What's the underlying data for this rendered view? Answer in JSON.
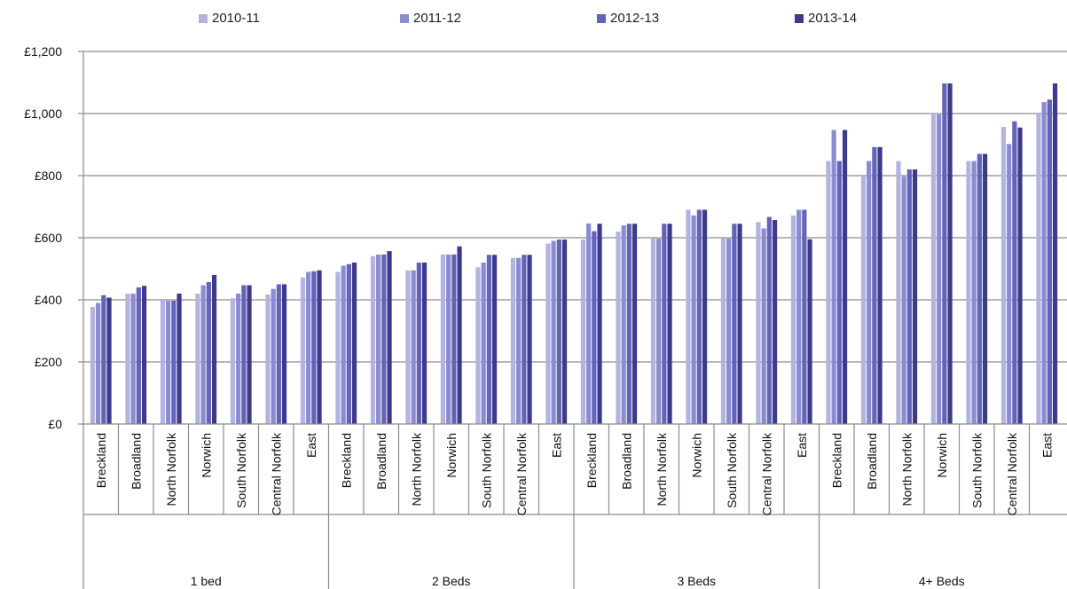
{
  "chart_data": {
    "type": "bar",
    "title": "",
    "xlabel": "",
    "ylabel": "",
    "ylim": [
      0,
      1200
    ],
    "yticks": [
      0,
      200,
      400,
      600,
      800,
      1000,
      1200
    ],
    "ytick_labels": [
      "£0",
      "£200",
      "£400",
      "£600",
      "£800",
      "£1,000",
      "£1,200"
    ],
    "grid": true,
    "legend_position": "top",
    "groups": [
      "1 bed",
      "2 Beds",
      "3 Beds",
      "4+ Beds"
    ],
    "areas": [
      "Breckland",
      "Broadland",
      "North Norfolk",
      "Norwich",
      "South Norfolk",
      "Central Norfolk",
      "East"
    ],
    "categories": [
      "Breckland",
      "Broadland",
      "North Norfolk",
      "Norwich",
      "South Norfolk",
      "Central Norfolk",
      "East",
      "Breckland",
      "Broadland",
      "North Norfolk",
      "Norwich",
      "South Norfolk",
      "Central Norfolk",
      "East",
      "Breckland",
      "Broadland",
      "North Norfolk",
      "Norwich",
      "South Norfolk",
      "Central Norfolk",
      "East",
      "Breckland",
      "Broadland",
      "North Norfolk",
      "Norwich",
      "South Norfolk",
      "Central Norfolk",
      "East"
    ],
    "series": [
      {
        "name": "2010-11",
        "color": "#b3b3e0",
        "values": [
          377,
          420,
          400,
          420,
          405,
          417,
          472,
          490,
          541,
          495,
          546,
          505,
          535,
          581,
          594,
          620,
          598,
          690,
          598,
          650,
          672,
          847,
          797,
          847,
          997,
          847,
          957,
          997
        ]
      },
      {
        "name": "2011-12",
        "color": "#8b8bd2",
        "values": [
          390,
          420,
          397,
          447,
          420,
          435,
          490,
          510,
          546,
          495,
          546,
          520,
          535,
          590,
          646,
          640,
          597,
          672,
          597,
          630,
          690,
          947,
          847,
          797,
          997,
          847,
          902,
          1037
        ]
      },
      {
        "name": "2012-13",
        "color": "#6363b8",
        "values": [
          415,
          440,
          397,
          457,
          447,
          450,
          492,
          515,
          546,
          520,
          546,
          545,
          545,
          594,
          621,
          645,
          645,
          690,
          645,
          667,
          690,
          847,
          892,
          820,
          1097,
          870,
          975,
          1045
        ]
      },
      {
        "name": "2013-14",
        "color": "#3d3a8c",
        "values": [
          407,
          445,
          420,
          480,
          447,
          450,
          495,
          520,
          557,
          520,
          572,
          545,
          545,
          594,
          645,
          645,
          645,
          690,
          645,
          657,
          595,
          947,
          892,
          820,
          1097,
          870,
          955,
          1097
        ]
      }
    ]
  }
}
